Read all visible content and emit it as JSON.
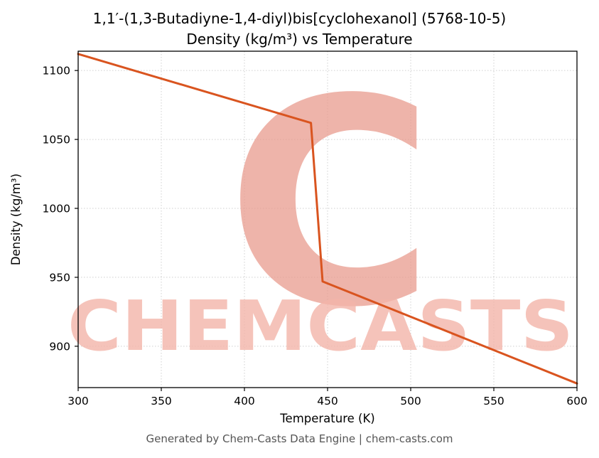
{
  "figure": {
    "title_line1": "1,1′-(1,3-Butadiyne-1,4-diyl)bis[cyclohexanol] (5768-10-5)",
    "title_line2": "Density (kg/m³) vs Temperature",
    "footer": "Generated by Chem-Casts Data Engine | chem-casts.com"
  },
  "watermark": {
    "text": "CHEMCASTS",
    "letter": "C",
    "text_color": "#f3b5a9",
    "logo_color": "#e99c8e",
    "text_opacity": 0.8,
    "logo_opacity": 0.75
  },
  "chart_data": {
    "type": "line",
    "title": "Density (kg/m³) vs Temperature",
    "suptitle": "1,1′-(1,3-Butadiyne-1,4-diyl)bis[cyclohexanol] (5768-10-5)",
    "xlabel": "Temperature (K)",
    "ylabel": "Density (kg/m³)",
    "xlim": [
      300,
      600
    ],
    "ylim": [
      870,
      1114
    ],
    "x_ticks": [
      300,
      350,
      400,
      450,
      500,
      550,
      600
    ],
    "y_ticks": [
      900,
      950,
      1000,
      1050,
      1100
    ],
    "grid": true,
    "legend": "none",
    "series": [
      {
        "name": "Density",
        "color": "#d9541f",
        "line_width": 3,
        "x": [
          300,
          440,
          447,
          600
        ],
        "y": [
          1112,
          1062,
          947,
          873
        ]
      }
    ]
  }
}
